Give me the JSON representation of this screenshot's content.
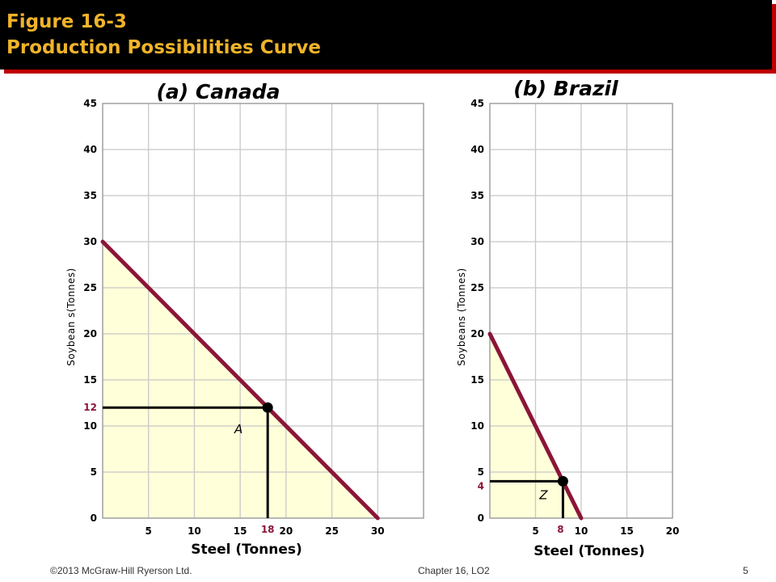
{
  "header": {
    "title_line1": "Figure 16-3",
    "title_line2": "Production Possibilities Curve"
  },
  "footer": {
    "copyright": "©2013 McGraw-Hill Ryerson Ltd.",
    "chapter": "Chapter 16, LO2",
    "page": "5"
  },
  "colors": {
    "curve": "#8b1538",
    "fill": "#ffffd9",
    "grid": "#c8c8c8",
    "highlight_tick": "#8b1538",
    "title_text": "#f0b429",
    "title_bar": "#000000",
    "title_shadow": "#c00000"
  },
  "chart_data": [
    {
      "type": "line",
      "title": "(a)  Canada",
      "xlabel": "Steel (Tonnes)",
      "ylabel": "Soybean s(Tonnes)",
      "xlim": [
        0,
        35
      ],
      "ylim": [
        0,
        45
      ],
      "x_ticks": [
        "5",
        "10",
        "15",
        "20",
        "25",
        "30"
      ],
      "y_ticks": [
        "0",
        "5",
        "10",
        "15",
        "20",
        "25",
        "30",
        "35",
        "40",
        "45"
      ],
      "grid": true,
      "series": [
        {
          "x": [
            0,
            30
          ],
          "y": [
            30,
            0
          ]
        }
      ],
      "point": {
        "label": "A",
        "x": 18,
        "y": 12,
        "x_tick_label": "18",
        "y_tick_label": "12"
      }
    },
    {
      "type": "line",
      "title": "(b)  Brazil",
      "xlabel": "Steel (Tonnes)",
      "ylabel": "Soybeans (Tonnes)",
      "xlim": [
        0,
        20
      ],
      "ylim": [
        0,
        45
      ],
      "x_ticks": [
        "5",
        "10",
        "15",
        "20"
      ],
      "y_ticks": [
        "0",
        "5",
        "10",
        "15",
        "20",
        "25",
        "30",
        "35",
        "40",
        "45"
      ],
      "grid": true,
      "series": [
        {
          "x": [
            0,
            10
          ],
          "y": [
            20,
            0
          ]
        }
      ],
      "point": {
        "label": "Z",
        "x": 8,
        "y": 4,
        "x_tick_label": "8",
        "y_tick_label": "4"
      }
    }
  ]
}
